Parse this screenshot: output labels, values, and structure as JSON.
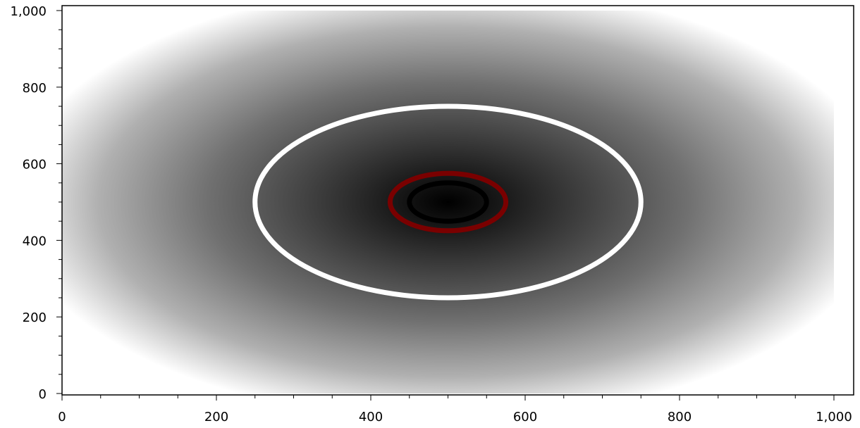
{
  "chart_data": {
    "type": "heatmap",
    "title": "",
    "xlabel": "",
    "ylabel": "",
    "xlim": [
      0,
      1000
    ],
    "ylim": [
      0,
      1000
    ],
    "x_ticks": [
      0,
      200,
      400,
      600,
      800,
      1000
    ],
    "x_tick_labels": [
      "0",
      "200",
      "400",
      "600",
      "800",
      "1,000"
    ],
    "y_ticks": [
      0,
      200,
      400,
      600,
      800,
      1000
    ],
    "y_tick_labels": [
      "0",
      "200",
      "400",
      "600",
      "800",
      "1,000"
    ],
    "grid": false,
    "colormap": {
      "low": "#000000",
      "high": "#ffffff",
      "center": [
        500,
        500
      ]
    },
    "contours": [
      {
        "color": "#ffffff",
        "center": [
          500,
          500
        ],
        "x_radius": 250,
        "y_radius": 250
      },
      {
        "color": "#7a0000",
        "center": [
          500,
          500
        ],
        "x_radius": 75,
        "y_radius": 75
      },
      {
        "color": "#000000",
        "center": [
          500,
          500
        ],
        "x_radius": 50,
        "y_radius": 50
      }
    ]
  }
}
